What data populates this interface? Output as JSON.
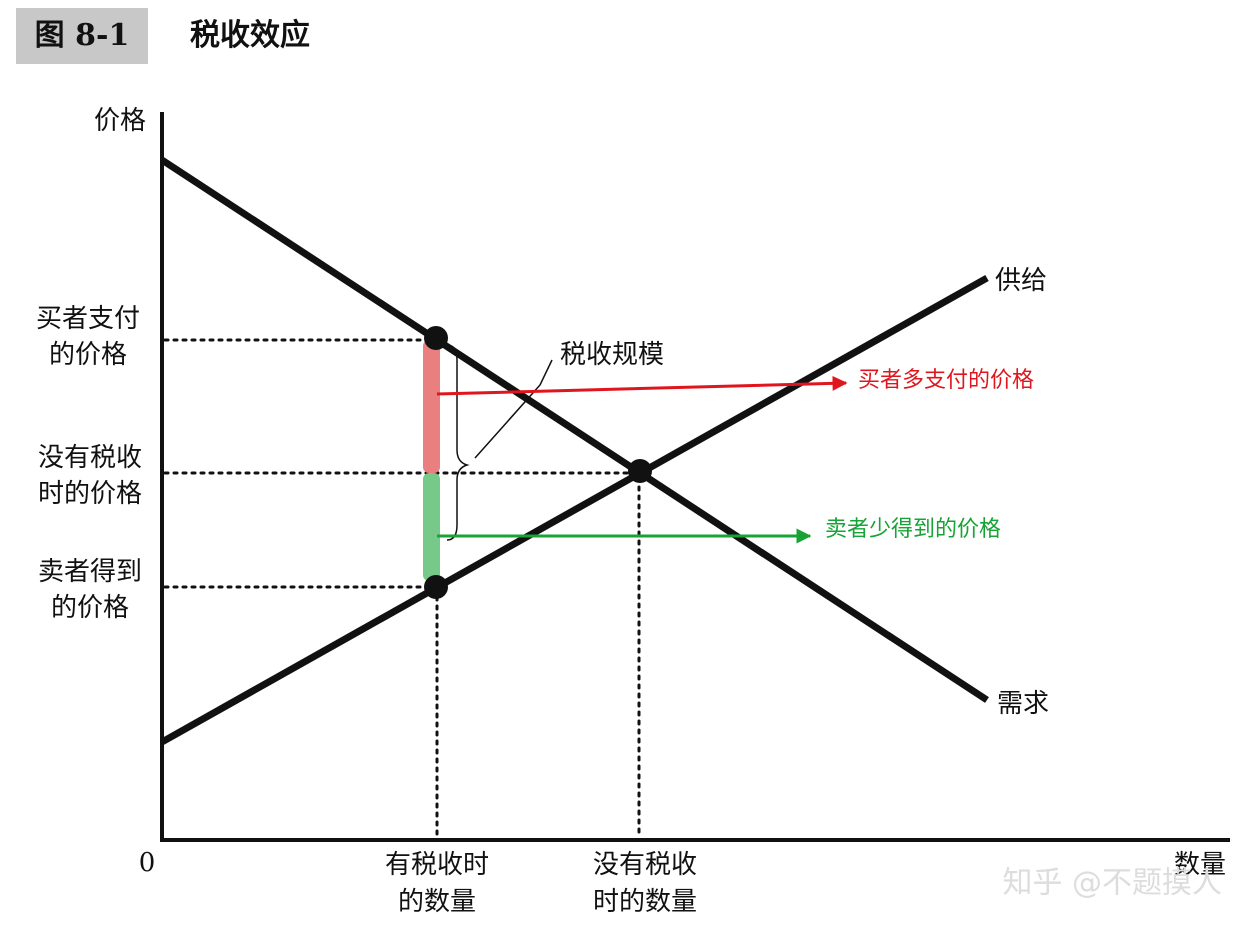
{
  "figure": {
    "label": "图 8-1",
    "title": "税收效应"
  },
  "axes": {
    "y_label": "价格",
    "x_label": "数量",
    "origin": "0"
  },
  "price_labels": {
    "buyer_pays": [
      "买者支付",
      "的价格"
    ],
    "no_tax": [
      "没有税收",
      "时的价格"
    ],
    "seller_gets": [
      "卖者得到",
      "的价格"
    ]
  },
  "quantity_labels": {
    "with_tax": [
      "有税收时",
      "的数量"
    ],
    "no_tax": [
      "没有税收",
      "时的数量"
    ]
  },
  "curves": {
    "supply": "供给",
    "demand": "需求"
  },
  "annotations": {
    "tax_size": "税收规模",
    "buyer_extra": "买者多支付的价格",
    "seller_less": "卖者少得到的价格"
  },
  "watermark": "知乎 @不题摸人"
}
